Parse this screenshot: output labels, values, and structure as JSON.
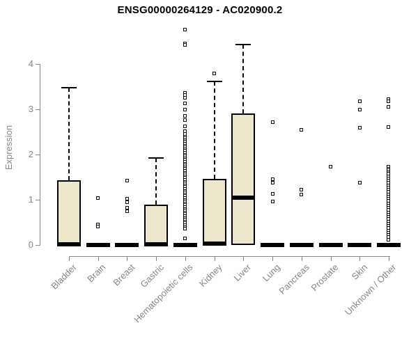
{
  "chart_data": {
    "type": "box",
    "title": "ENSG00000264129 - AC020900.2",
    "ylabel": "Expression",
    "xlabel": "",
    "ylim": [
      0,
      4.8
    ],
    "yticks": [
      0,
      1,
      2,
      3,
      4
    ],
    "grid": false,
    "legend_position": "none",
    "box_fill_color": "#ECE6CB",
    "box_border_color": "#000000",
    "axis_color": "#878787",
    "categories": [
      "Bladder",
      "Brain",
      "Breast",
      "Gastric",
      "Hematopoietic cells",
      "Kidney",
      "Liver",
      "Lung",
      "Pancreas",
      "Prostate",
      "Skin",
      "Unknown / Other"
    ],
    "boxes": [
      {
        "label": "Bladder",
        "q1": 0,
        "median": 0.02,
        "q3": 1.43,
        "whisker_low": 0,
        "whisker_high": 3.47,
        "outliers": []
      },
      {
        "label": "Brain",
        "q1": 0,
        "median": 0,
        "q3": 0,
        "whisker_low": 0,
        "whisker_high": 0,
        "outliers": [
          1.04,
          0.45,
          0.41
        ]
      },
      {
        "label": "Breast",
        "q1": 0,
        "median": 0,
        "q3": 0,
        "whisker_low": 0,
        "whisker_high": 0,
        "outliers": [
          1.43,
          1.02,
          0.94,
          0.83,
          0.75
        ]
      },
      {
        "label": "Gastric",
        "q1": 0,
        "median": 0.02,
        "q3": 0.89,
        "whisker_low": 0,
        "whisker_high": 1.93,
        "outliers": []
      },
      {
        "label": "Hematopoietic cells",
        "q1": 0,
        "median": 0,
        "q3": 0,
        "whisker_low": 0,
        "whisker_high": 0,
        "outliers": [
          4.76,
          4.46,
          4.42,
          3.36,
          3.31,
          3.26,
          3.13,
          2.99,
          2.86,
          2.76,
          2.63,
          2.52,
          2.45,
          2.4,
          2.36,
          2.32,
          2.28,
          2.24,
          2.2,
          2.16,
          2.12,
          2.08,
          2.04,
          2.0,
          1.96,
          1.92,
          1.88,
          1.84,
          1.8,
          1.76,
          1.72,
          1.68,
          1.64,
          1.6,
          1.56,
          1.52,
          1.48,
          1.44,
          1.4,
          1.36,
          1.32,
          1.28,
          1.24,
          1.2,
          1.16,
          1.12,
          1.08,
          1.04,
          1.0,
          0.96,
          0.92,
          0.88,
          0.84,
          0.8,
          0.76,
          0.72,
          0.68,
          0.64,
          0.6,
          0.56,
          0.52,
          0.48,
          0.44,
          0.4,
          0.36,
          0.15
        ]
      },
      {
        "label": "Kidney",
        "q1": 0,
        "median": 0.03,
        "q3": 1.46,
        "whisker_low": 0,
        "whisker_high": 3.62,
        "outliers": [
          3.8
        ]
      },
      {
        "label": "Liver",
        "q1": 0,
        "median": 1.04,
        "q3": 2.91,
        "whisker_low": 0,
        "whisker_high": 4.43,
        "outliers": []
      },
      {
        "label": "Lung",
        "q1": 0,
        "median": 0,
        "q3": 0,
        "whisker_low": 0,
        "whisker_high": 0,
        "outliers": [
          2.72,
          1.46,
          1.38,
          1.13,
          0.96
        ]
      },
      {
        "label": "Pancreas",
        "q1": 0,
        "median": 0,
        "q3": 0,
        "whisker_low": 0,
        "whisker_high": 0,
        "outliers": [
          2.54,
          1.23,
          1.12
        ]
      },
      {
        "label": "Prostate",
        "q1": 0,
        "median": 0,
        "q3": 0,
        "whisker_low": 0,
        "whisker_high": 0,
        "outliers": [
          1.73
        ]
      },
      {
        "label": "Skin",
        "q1": 0,
        "median": 0,
        "q3": 0,
        "whisker_low": 0,
        "whisker_high": 0,
        "outliers": [
          3.17,
          3.0,
          2.6,
          1.38
        ]
      },
      {
        "label": "Unknown / Other",
        "q1": 0,
        "median": 0,
        "q3": 0,
        "whisker_low": 0,
        "whisker_high": 0,
        "outliers": [
          3.22,
          3.18,
          3.06,
          2.61,
          1.73,
          1.69,
          1.65,
          1.61,
          1.57,
          1.52,
          1.47,
          1.42,
          1.37,
          1.32,
          1.27,
          1.22,
          1.17,
          1.12,
          1.07,
          1.02,
          0.97,
          0.92,
          0.87,
          0.82,
          0.77,
          0.72,
          0.67,
          0.62,
          0.57,
          0.52,
          0.47,
          0.42,
          0.37,
          0.32,
          0.27,
          0.22,
          0.17,
          0.12
        ]
      }
    ]
  }
}
